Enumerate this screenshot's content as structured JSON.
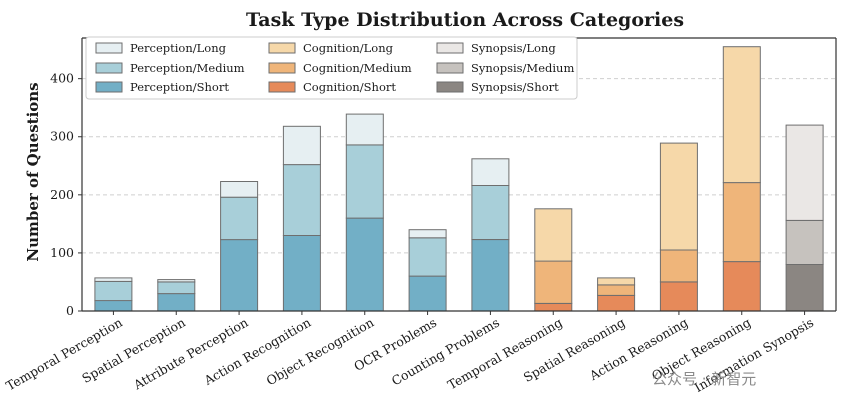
{
  "watermark": "公众号 · 新智元",
  "chart_data": {
    "type": "bar",
    "stacked": true,
    "title": "Task Type Distribution Across Categories",
    "xlabel": "",
    "ylabel": "Number of Questions",
    "ylim": [
      0,
      470
    ],
    "yticks": [
      0,
      100,
      200,
      300,
      400
    ],
    "grid": "y-dashed",
    "legend_position": "top-left",
    "categories": [
      "Temporal Perception",
      "Spatial Perception",
      "Attribute Perception",
      "Action Recognition",
      "Object Recognition",
      "OCR Problems",
      "Counting Problems",
      "Temporal Reasoning",
      "Spatial Reasoning",
      "Action Reasoning",
      "Object Reasoning",
      "Information Synopsis"
    ],
    "category_group": [
      "Perception",
      "Perception",
      "Perception",
      "Perception",
      "Perception",
      "Perception",
      "Perception",
      "Cognition",
      "Cognition",
      "Cognition",
      "Cognition",
      "Synopsis"
    ],
    "series": [
      {
        "name": "Perception/Long",
        "group": "Perception",
        "level": "Long",
        "color": "#e6eff2"
      },
      {
        "name": "Perception/Medium",
        "group": "Perception",
        "level": "Medium",
        "color": "#a8cfd9"
      },
      {
        "name": "Perception/Short",
        "group": "Perception",
        "level": "Short",
        "color": "#72afc6"
      },
      {
        "name": "Cognition/Long",
        "group": "Cognition",
        "level": "Long",
        "color": "#f6d8a9"
      },
      {
        "name": "Cognition/Medium",
        "group": "Cognition",
        "level": "Medium",
        "color": "#efb57a"
      },
      {
        "name": "Cognition/Short",
        "group": "Cognition",
        "level": "Short",
        "color": "#e68a5a"
      },
      {
        "name": "Synopsis/Long",
        "group": "Synopsis",
        "level": "Long",
        "color": "#eae7e5"
      },
      {
        "name": "Synopsis/Medium",
        "group": "Synopsis",
        "level": "Medium",
        "color": "#c6c2be"
      },
      {
        "name": "Synopsis/Short",
        "group": "Synopsis",
        "level": "Short",
        "color": "#8b8682"
      }
    ],
    "values": {
      "Short": [
        18,
        30,
        123,
        130,
        160,
        60,
        123,
        13,
        27,
        50,
        85,
        80
      ],
      "Medium": [
        33,
        20,
        73,
        122,
        126,
        66,
        93,
        73,
        18,
        55,
        136,
        76
      ],
      "Long": [
        6,
        4,
        27,
        66,
        53,
        14,
        46,
        90,
        12,
        184,
        234,
        164
      ]
    }
  }
}
